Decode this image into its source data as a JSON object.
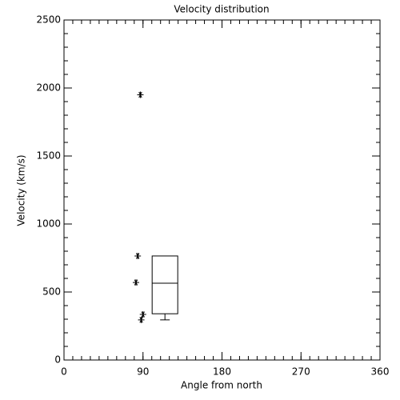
{
  "chart_data": {
    "type": "scatter",
    "title": "Velocity distribution",
    "x_label": "Angle from north",
    "y_label": "Velocity (km/s)",
    "xlim": [
      0,
      360
    ],
    "xticks": [
      0,
      90,
      180,
      270,
      360
    ],
    "x_minor_step": 10,
    "ylim": [
      0,
      2500
    ],
    "yticks": [
      0,
      500,
      1000,
      1500,
      2000,
      2500
    ],
    "y_minor_step": 100,
    "color": "#000000",
    "marker": "asterisk",
    "x": [
      87,
      84,
      82,
      90,
      88
    ],
    "values": [
      1950,
      765,
      570,
      335,
      295
    ],
    "box": {
      "x": 115,
      "min": 295,
      "q1": 340,
      "median": 565,
      "q3": 765
    }
  }
}
